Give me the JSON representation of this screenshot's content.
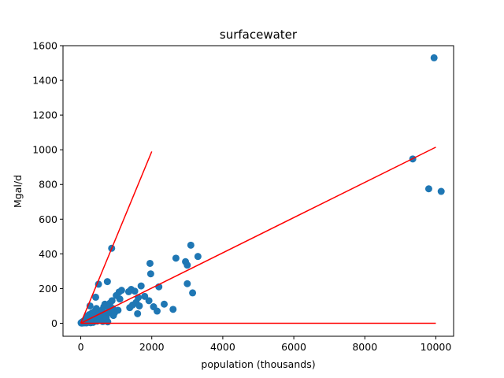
{
  "chart_data": {
    "type": "scatter",
    "title": "surfacewater",
    "xlabel": "population (thousands)",
    "ylabel": "Mgal/d",
    "xlim": [
      -500,
      10500
    ],
    "ylim": [
      -75,
      1600
    ],
    "xticks": [
      0,
      2000,
      4000,
      6000,
      8000,
      10000
    ],
    "yticks": [
      0,
      200,
      400,
      600,
      800,
      1000,
      1200,
      1400,
      1600
    ],
    "grid": false,
    "marker_color": "#1f77b4",
    "line_color": "#ff0000",
    "points": [
      [
        10,
        2
      ],
      [
        20,
        4
      ],
      [
        30,
        1
      ],
      [
        40,
        6
      ],
      [
        50,
        3
      ],
      [
        60,
        10
      ],
      [
        70,
        2
      ],
      [
        80,
        5
      ],
      [
        90,
        8
      ],
      [
        100,
        12
      ],
      [
        110,
        3
      ],
      [
        120,
        20
      ],
      [
        130,
        6
      ],
      [
        140,
        15
      ],
      [
        150,
        30
      ],
      [
        160,
        2
      ],
      [
        170,
        40
      ],
      [
        180,
        9
      ],
      [
        190,
        18
      ],
      [
        200,
        25
      ],
      [
        210,
        5
      ],
      [
        220,
        35
      ],
      [
        230,
        12
      ],
      [
        240,
        50
      ],
      [
        250,
        8
      ],
      [
        260,
        100
      ],
      [
        270,
        22
      ],
      [
        280,
        3
      ],
      [
        290,
        45
      ],
      [
        300,
        15
      ],
      [
        310,
        28
      ],
      [
        320,
        60
      ],
      [
        330,
        10
      ],
      [
        340,
        38
      ],
      [
        350,
        5
      ],
      [
        360,
        55
      ],
      [
        380,
        18
      ],
      [
        400,
        70
      ],
      [
        420,
        150
      ],
      [
        430,
        30
      ],
      [
        440,
        85
      ],
      [
        460,
        12
      ],
      [
        480,
        45
      ],
      [
        500,
        225
      ],
      [
        520,
        60
      ],
      [
        540,
        20
      ],
      [
        560,
        40
      ],
      [
        600,
        75
      ],
      [
        620,
        10
      ],
      [
        650,
        95
      ],
      [
        680,
        110
      ],
      [
        700,
        50
      ],
      [
        720,
        30
      ],
      [
        750,
        240
      ],
      [
        760,
        8
      ],
      [
        780,
        90
      ],
      [
        800,
        60
      ],
      [
        820,
        115
      ],
      [
        840,
        70
      ],
      [
        870,
        432
      ],
      [
        880,
        130
      ],
      [
        900,
        85
      ],
      [
        920,
        45
      ],
      [
        950,
        60
      ],
      [
        1000,
        160
      ],
      [
        1050,
        75
      ],
      [
        1080,
        180
      ],
      [
        1100,
        140
      ],
      [
        1150,
        190
      ],
      [
        1350,
        182
      ],
      [
        1380,
        90
      ],
      [
        1420,
        195
      ],
      [
        1460,
        105
      ],
      [
        1520,
        185
      ],
      [
        1560,
        120
      ],
      [
        1600,
        55
      ],
      [
        1620,
        148
      ],
      [
        1650,
        100
      ],
      [
        1700,
        215
      ],
      [
        1800,
        155
      ],
      [
        1950,
        345
      ],
      [
        1970,
        285
      ],
      [
        1920,
        130
      ],
      [
        2050,
        95
      ],
      [
        2150,
        70
      ],
      [
        2200,
        210
      ],
      [
        2350,
        110
      ],
      [
        2600,
        80
      ],
      [
        2680,
        375
      ],
      [
        2950,
        355
      ],
      [
        3000,
        335
      ],
      [
        3000,
        228
      ],
      [
        3100,
        450
      ],
      [
        3150,
        175
      ],
      [
        3300,
        385
      ],
      [
        9350,
        947
      ],
      [
        9800,
        775
      ],
      [
        9950,
        1530
      ],
      [
        10150,
        760
      ]
    ],
    "lines": [
      {
        "x": [
          0,
          2000
        ],
        "y": [
          0,
          990
        ]
      },
      {
        "x": [
          0,
          10000
        ],
        "y": [
          0,
          1015
        ]
      },
      {
        "x": [
          0,
          10000
        ],
        "y": [
          0,
          0
        ]
      }
    ]
  }
}
